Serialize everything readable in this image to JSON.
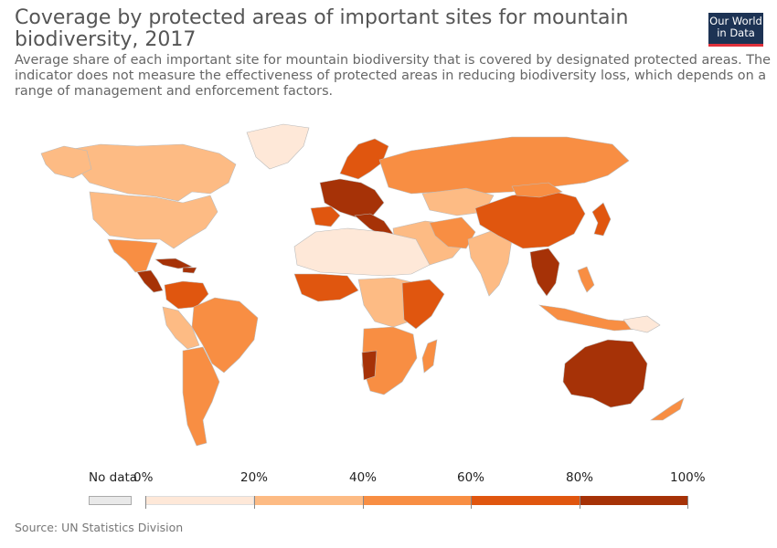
{
  "header": {
    "title": "Coverage by protected areas of important sites for mountain biodiversity, 2017",
    "subtitle": "Average share of each important site for mountain biodiversity that is covered by designated protected areas. The indicator does not measure the effectiveness of protected areas in reducing biodiversity loss, which depends on a range of management and enforcement factors.",
    "logo_line1": "Our World",
    "logo_line2": "in Data"
  },
  "legend": {
    "no_data_label": "No data",
    "bins": [
      {
        "label": "0%",
        "color": "#fee8d8"
      },
      {
        "label": "20%",
        "color": "#fdbb84"
      },
      {
        "label": "40%",
        "color": "#f88e43"
      },
      {
        "label": "60%",
        "color": "#e0560f"
      },
      {
        "label": "80%",
        "color": "#a63207"
      }
    ],
    "end_label": "100%",
    "no_data_color": "#e9e9e9"
  },
  "footer": {
    "source": "Source: UN Statistics Division"
  }
}
